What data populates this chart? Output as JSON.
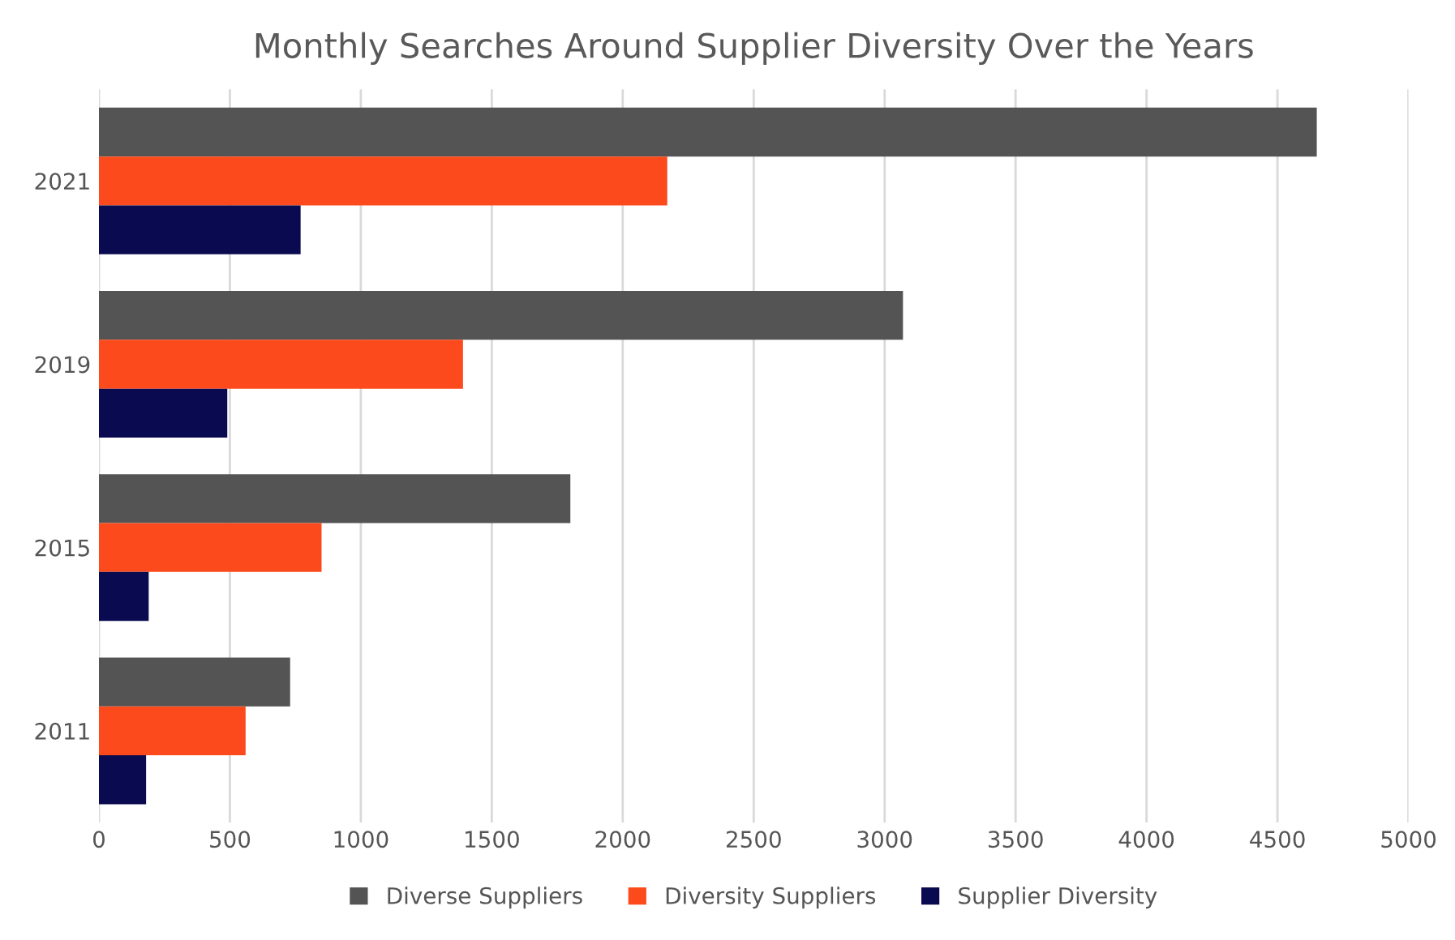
{
  "chart_data": {
    "type": "bar",
    "orientation": "horizontal",
    "title": "Monthly Searches Around Supplier Diversity Over the Years",
    "categories": [
      "2021",
      "2019",
      "2015",
      "2011"
    ],
    "series": [
      {
        "name": "Diverse Suppliers",
        "color": "#545454",
        "values": [
          4650,
          3070,
          1800,
          730
        ]
      },
      {
        "name": "Diversity Suppliers",
        "color": "#fc4a1c",
        "values": [
          2170,
          1390,
          850,
          560
        ]
      },
      {
        "name": "Supplier Diversity",
        "color": "#0a0a50",
        "values": [
          770,
          490,
          190,
          180
        ]
      }
    ],
    "xlim": [
      0,
      5000
    ],
    "xticks": [
      0,
      500,
      1000,
      1500,
      2000,
      2500,
      3000,
      3500,
      4000,
      4500,
      5000
    ],
    "grid": "x",
    "legend": "bottom"
  }
}
